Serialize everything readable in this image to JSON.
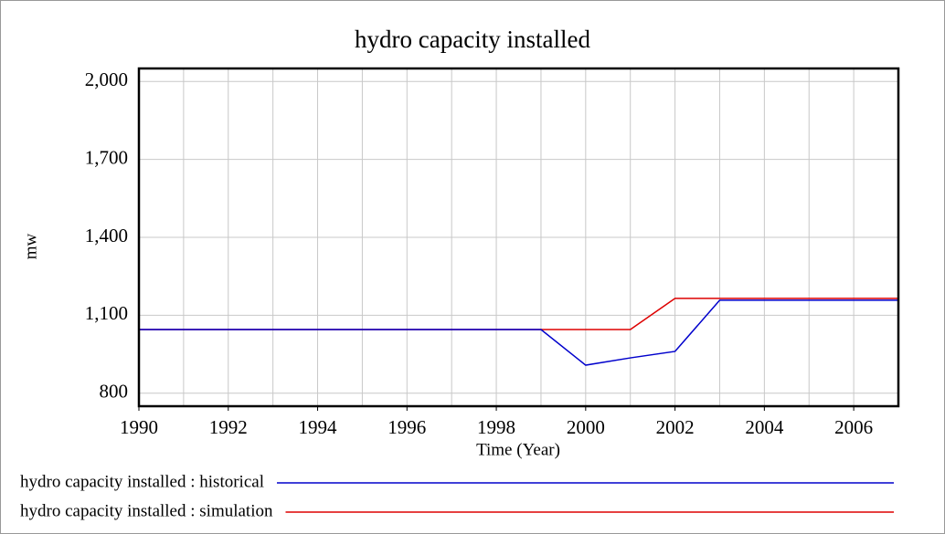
{
  "chart_data": {
    "type": "line",
    "title": "hydro capacity installed",
    "xlabel": "Time (Year)",
    "ylabel": "mw",
    "x": [
      1990,
      1991,
      1992,
      1993,
      1994,
      1995,
      1996,
      1997,
      1998,
      1999,
      2000,
      2001,
      2002,
      2003,
      2004,
      2005,
      2006,
      2007
    ],
    "series": [
      {
        "name": "hydro capacity installed : historical",
        "color": "#0000cc",
        "values": [
          1045,
          1045,
          1045,
          1045,
          1045,
          1045,
          1045,
          1045,
          1045,
          1045,
          908,
          936,
          961,
          1158,
          1158,
          1158,
          1158,
          1158
        ]
      },
      {
        "name": "hydro capacity installed : simulation",
        "color": "#dd0000",
        "values": [
          1045,
          1045,
          1045,
          1045,
          1045,
          1045,
          1045,
          1045,
          1045,
          1045,
          1045,
          1045,
          1165,
          1165,
          1165,
          1165,
          1165,
          1165
        ]
      }
    ],
    "xlim": [
      1990,
      2007
    ],
    "xticks": [
      1990,
      1992,
      1994,
      1996,
      1998,
      2000,
      2002,
      2004,
      2006
    ],
    "ylim": [
      750,
      2050
    ],
    "yticks": [
      {
        "value": 800,
        "label": "800"
      },
      {
        "value": 1100,
        "label": "1,100"
      },
      {
        "value": 1400,
        "label": "1,400"
      },
      {
        "value": 1700,
        "label": "1,700"
      },
      {
        "value": 2000,
        "label": "2,000"
      }
    ],
    "grid": true
  }
}
